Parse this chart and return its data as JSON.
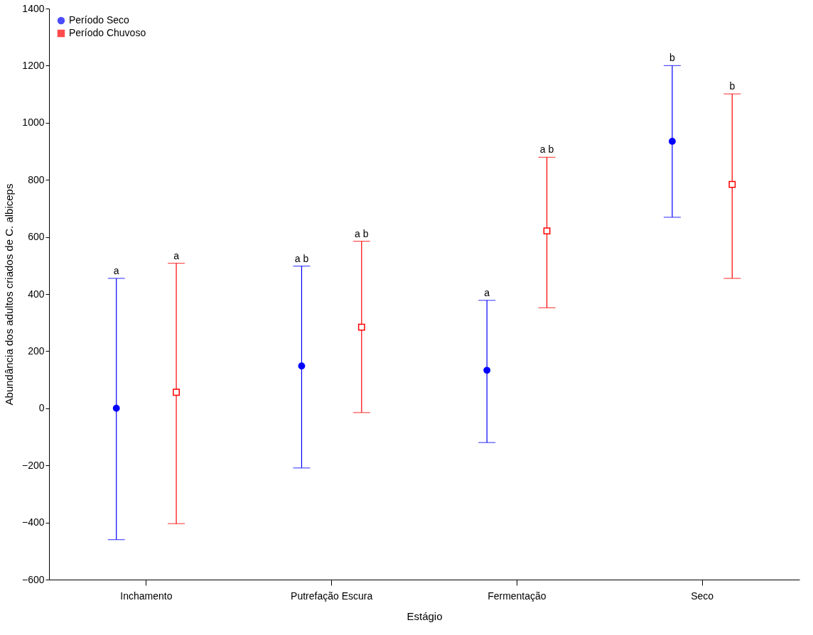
{
  "chart_data": {
    "type": "scatter",
    "xlabel": "Estágio",
    "ylabel": "Abundância dos adultos criados de C. albiceps",
    "categories": [
      "Inchamento",
      "Putrefação Escura",
      "Fermentação",
      "Seco"
    ],
    "series": [
      {
        "name": "Período Seco",
        "color": "#0000ff",
        "marker": "circle",
        "values": [
          0,
          148,
          133,
          935
        ],
        "errors": [
          [
            -460,
            455
          ],
          [
            -209,
            498
          ],
          [
            -120,
            378
          ],
          [
            669,
            1200
          ]
        ]
      },
      {
        "name": "Período Chuvoso",
        "color": "#ff0000",
        "marker": "square",
        "values": [
          56,
          284,
          621,
          784
        ],
        "errors": [
          [
            -404,
            508
          ],
          [
            -15,
            585
          ],
          [
            352,
            879
          ],
          [
            455,
            1101
          ]
        ]
      }
    ],
    "annotations": [
      "a",
      "a b",
      "a",
      "b",
      "a",
      "a b",
      "a b",
      "b"
    ],
    "ylim": [
      -600,
      1400
    ],
    "yticks": [
      -600,
      -400,
      -200,
      0,
      200,
      400,
      600,
      800,
      1000,
      1200,
      1400
    ],
    "grid": false,
    "legend": "top left"
  }
}
